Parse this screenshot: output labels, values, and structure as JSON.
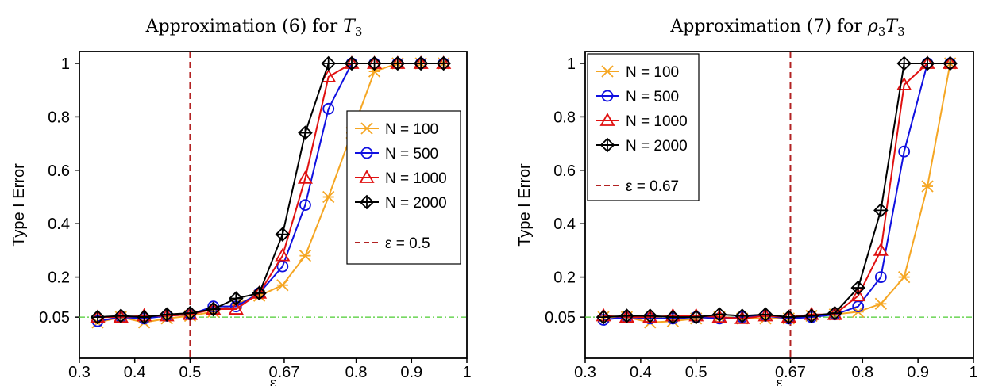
{
  "chart_data": [
    {
      "type": "line",
      "title_prefix": "Approximation (6) for ",
      "title_math": "T",
      "title_sub": "3",
      "xlabel": "ε",
      "ylabel": "Type I Error",
      "xlim": [
        0.3,
        1.0
      ],
      "ylim": [
        0.0,
        1.0
      ],
      "xticks": [
        0.3,
        0.4,
        0.5,
        0.67,
        0.8,
        0.9,
        1.0
      ],
      "xtick_labels": [
        "0.3",
        "0.4",
        "0.5",
        "0.67",
        "0.8",
        "0.9",
        "1"
      ],
      "yticks": [
        0.05,
        0.2,
        0.4,
        0.6,
        0.8,
        1.0
      ],
      "ytick_labels": [
        "0.05",
        "0.2",
        "0.4",
        "0.6",
        "0.8",
        "1"
      ],
      "x": [
        0.333,
        0.375,
        0.417,
        0.458,
        0.5,
        0.542,
        0.583,
        0.625,
        0.667,
        0.708,
        0.75,
        0.792,
        0.833,
        0.875,
        0.917,
        0.958
      ],
      "series": [
        {
          "name": "N = 100",
          "color": "#f5a623",
          "marker": "x",
          "values": [
            0.03,
            0.05,
            0.03,
            0.045,
            0.055,
            0.07,
            0.1,
            0.13,
            0.17,
            0.28,
            0.5,
            0.74,
            0.97,
            1.0,
            1.0,
            1.0
          ]
        },
        {
          "name": "N = 500",
          "color": "#1010e0",
          "marker": "circle",
          "values": [
            0.035,
            0.05,
            0.045,
            0.055,
            0.06,
            0.09,
            0.09,
            0.14,
            0.24,
            0.47,
            0.83,
            1.0,
            1.0,
            1.0,
            1.0,
            1.0
          ]
        },
        {
          "name": "N = 1000",
          "color": "#e01010",
          "marker": "triangle",
          "values": [
            0.05,
            0.05,
            0.055,
            0.055,
            0.06,
            0.08,
            0.08,
            0.14,
            0.28,
            0.57,
            0.95,
            1.0,
            1.0,
            1.0,
            1.0,
            1.0
          ]
        },
        {
          "name": "N = 2000",
          "color": "#000000",
          "marker": "diamond-plus",
          "values": [
            0.05,
            0.055,
            0.05,
            0.06,
            0.065,
            0.08,
            0.12,
            0.14,
            0.36,
            0.74,
            1.0,
            1.0,
            1.0,
            1.0,
            1.0,
            1.0
          ]
        }
      ],
      "vline": {
        "x": 0.5,
        "label": "ε = 0.5",
        "color": "#b22222"
      },
      "hline": {
        "y": 0.05,
        "color": "#4ccc30"
      },
      "legend_placement": "right-middle",
      "grid": false
    },
    {
      "type": "line",
      "title_prefix": "Approximation (7) for ",
      "title_math": "ρ",
      "title_sub": "3",
      "title_math2": "T",
      "title_sub2": "3",
      "xlabel": "ε",
      "ylabel": "Type I Error",
      "xlim": [
        0.3,
        1.0
      ],
      "ylim": [
        0.0,
        1.0
      ],
      "xticks": [
        0.3,
        0.4,
        0.5,
        0.67,
        0.8,
        0.9,
        1.0
      ],
      "xtick_labels": [
        "0.3",
        "0.4",
        "0.5",
        "0.67",
        "0.8",
        "0.9",
        "1"
      ],
      "yticks": [
        0.05,
        0.2,
        0.4,
        0.6,
        0.8,
        1.0
      ],
      "ytick_labels": [
        "0.05",
        "0.2",
        "0.4",
        "0.6",
        "0.8",
        "1"
      ],
      "x": [
        0.333,
        0.375,
        0.417,
        0.458,
        0.5,
        0.542,
        0.583,
        0.625,
        0.667,
        0.708,
        0.75,
        0.792,
        0.833,
        0.875,
        0.917,
        0.958
      ],
      "series": [
        {
          "name": "N = 100",
          "color": "#f5a623",
          "marker": "x",
          "values": [
            0.05,
            0.05,
            0.03,
            0.035,
            0.045,
            0.05,
            0.045,
            0.045,
            0.045,
            0.055,
            0.06,
            0.07,
            0.1,
            0.2,
            0.54,
            1.0
          ]
        },
        {
          "name": "N = 500",
          "color": "#1010e0",
          "marker": "circle",
          "values": [
            0.04,
            0.05,
            0.045,
            0.045,
            0.05,
            0.045,
            0.05,
            0.055,
            0.045,
            0.05,
            0.06,
            0.09,
            0.2,
            0.67,
            1.0,
            1.0
          ]
        },
        {
          "name": "N = 1000",
          "color": "#e01010",
          "marker": "triangle",
          "values": [
            0.055,
            0.05,
            0.05,
            0.055,
            0.055,
            0.05,
            0.045,
            0.055,
            0.05,
            0.06,
            0.06,
            0.13,
            0.3,
            0.92,
            1.0,
            1.0
          ]
        },
        {
          "name": "N = 2000",
          "color": "#000000",
          "marker": "diamond-plus",
          "values": [
            0.05,
            0.055,
            0.055,
            0.05,
            0.05,
            0.06,
            0.055,
            0.06,
            0.05,
            0.055,
            0.065,
            0.16,
            0.45,
            1.0,
            1.0,
            1.0
          ]
        }
      ],
      "vline": {
        "x": 0.67,
        "label": "ε = 0.67",
        "color": "#b22222"
      },
      "hline": {
        "y": 0.05,
        "color": "#4ccc30"
      },
      "legend_placement": "top-left",
      "grid": false
    }
  ]
}
